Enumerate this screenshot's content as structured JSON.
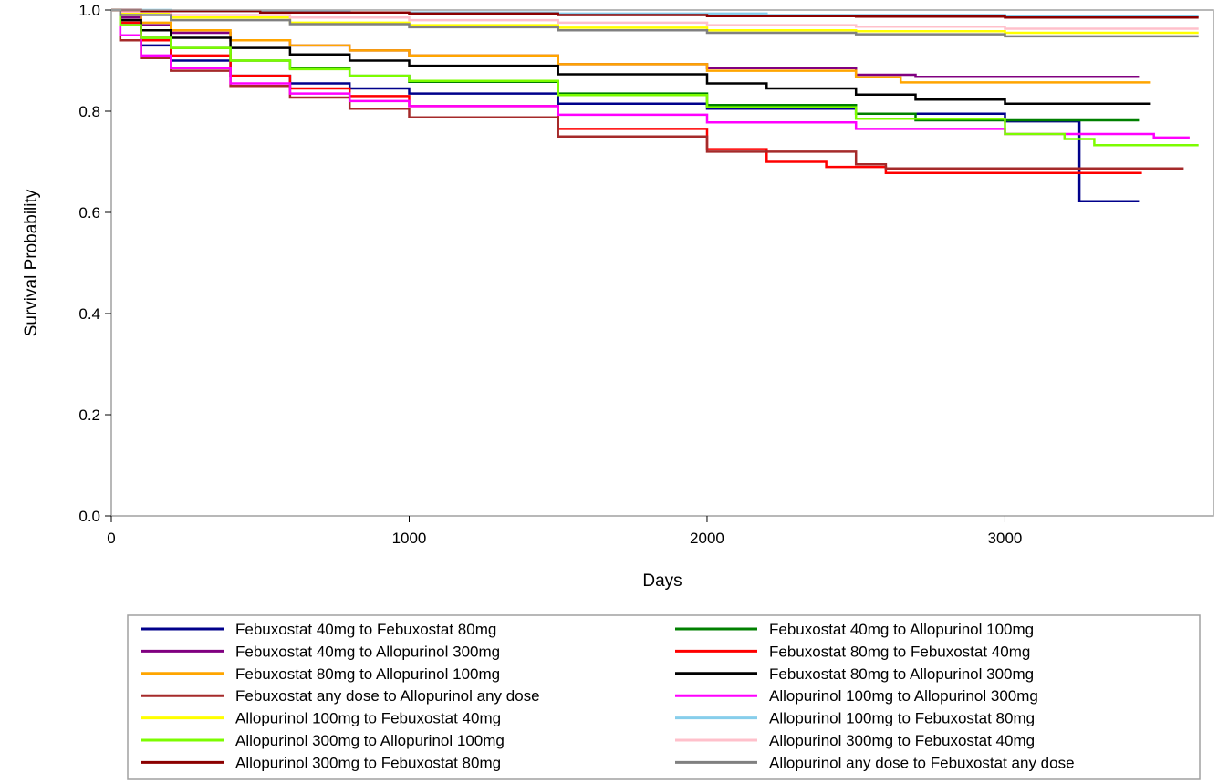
{
  "chart_data": {
    "type": "line",
    "xlabel": "Days",
    "ylabel": "Survival Probability",
    "xlim": [
      0,
      3700
    ],
    "ylim": [
      0,
      1.0
    ],
    "xticks": [
      0,
      1000,
      2000,
      3000
    ],
    "xtick_labels": [
      "0",
      "1000",
      "2000",
      "3000"
    ],
    "yticks": [
      0,
      0.2,
      0.4,
      0.6,
      0.8,
      1.0
    ],
    "ytick_labels": [
      "0.0",
      "0.2",
      "0.4",
      "0.6",
      "0.8",
      "1.0"
    ],
    "grid": false,
    "legend_position": "bottom",
    "step": true,
    "series": [
      {
        "name": "Febuxostat 40mg to Febuxostat 80mg",
        "color": "#00008b",
        "x": [
          0,
          30,
          100,
          200,
          400,
          600,
          800,
          1000,
          1500,
          2000,
          2500,
          3000,
          3249,
          3250,
          3450
        ],
        "y": [
          1.0,
          0.97,
          0.93,
          0.9,
          0.87,
          0.855,
          0.845,
          0.835,
          0.815,
          0.805,
          0.795,
          0.78,
          0.78,
          0.622,
          0.622
        ]
      },
      {
        "name": "Febuxostat 40mg to Allopurinol 100mg",
        "color": "#008000",
        "x": [
          0,
          30,
          100,
          200,
          400,
          600,
          800,
          1000,
          1500,
          2000,
          2500,
          2700,
          3450
        ],
        "y": [
          1.0,
          0.97,
          0.945,
          0.925,
          0.9,
          0.885,
          0.87,
          0.858,
          0.835,
          0.812,
          0.795,
          0.782,
          0.782
        ]
      },
      {
        "name": "Febuxostat 40mg to Allopurinol 300mg",
        "color": "#800080",
        "x": [
          0,
          30,
          100,
          200,
          400,
          600,
          800,
          1000,
          1500,
          2000,
          2500,
          2700,
          3450
        ],
        "y": [
          1.0,
          0.985,
          0.97,
          0.955,
          0.94,
          0.93,
          0.92,
          0.91,
          0.893,
          0.885,
          0.872,
          0.868,
          0.868
        ]
      },
      {
        "name": "Febuxostat 80mg to Febuxostat 40mg",
        "color": "#ff0000",
        "x": [
          0,
          30,
          100,
          200,
          400,
          600,
          800,
          1000,
          1500,
          2000,
          2200,
          2400,
          2600,
          3460
        ],
        "y": [
          1.0,
          0.975,
          0.94,
          0.91,
          0.87,
          0.845,
          0.83,
          0.81,
          0.765,
          0.725,
          0.7,
          0.69,
          0.678,
          0.678
        ]
      },
      {
        "name": "Febuxostat 80mg to Allopurinol 100mg",
        "color": "#ffa500",
        "x": [
          0,
          30,
          100,
          200,
          400,
          600,
          800,
          1000,
          1500,
          2000,
          2500,
          2650,
          3490
        ],
        "y": [
          1.0,
          0.99,
          0.975,
          0.96,
          0.94,
          0.93,
          0.92,
          0.91,
          0.893,
          0.88,
          0.867,
          0.857,
          0.857
        ]
      },
      {
        "name": "Febuxostat 80mg to Allopurinol 300mg",
        "color": "#000000",
        "x": [
          0,
          30,
          100,
          200,
          400,
          600,
          800,
          1000,
          1500,
          2000,
          2200,
          2500,
          2700,
          3000,
          3490
        ],
        "y": [
          1.0,
          0.98,
          0.96,
          0.945,
          0.925,
          0.912,
          0.9,
          0.89,
          0.873,
          0.855,
          0.845,
          0.833,
          0.823,
          0.815,
          0.815
        ]
      },
      {
        "name": "Febuxostat any dose to Allopurinol any dose",
        "color": "#a52a2a",
        "x": [
          0,
          30,
          100,
          200,
          400,
          600,
          800,
          1000,
          1500,
          2000,
          2500,
          2600,
          3600
        ],
        "y": [
          1.0,
          0.94,
          0.905,
          0.88,
          0.85,
          0.827,
          0.805,
          0.788,
          0.75,
          0.72,
          0.695,
          0.687,
          0.687
        ]
      },
      {
        "name": "Allopurinol 100mg to Allopurinol 300mg",
        "color": "#ff00ff",
        "x": [
          0,
          30,
          100,
          200,
          400,
          600,
          800,
          1000,
          1500,
          2000,
          2500,
          3000,
          3500,
          3620
        ],
        "y": [
          1.0,
          0.95,
          0.91,
          0.885,
          0.855,
          0.835,
          0.82,
          0.81,
          0.793,
          0.778,
          0.765,
          0.755,
          0.748,
          0.748
        ]
      },
      {
        "name": "Allopurinol 100mg to Febuxostat 40mg",
        "color": "#ffff00",
        "x": [
          0,
          30,
          200,
          600,
          1000,
          1500,
          2000,
          2500,
          3000,
          3650
        ],
        "y": [
          1.0,
          0.995,
          0.985,
          0.975,
          0.97,
          0.965,
          0.96,
          0.958,
          0.955,
          0.955
        ]
      },
      {
        "name": "Allopurinol 100mg to Febuxostat 80mg",
        "color": "#87ceeb",
        "x": [
          0,
          200,
          800,
          1500,
          2200,
          3000,
          3650
        ],
        "y": [
          1.0,
          0.998,
          0.995,
          0.993,
          0.99,
          0.988,
          0.988
        ]
      },
      {
        "name": "Allopurinol 300mg to Allopurinol 100mg",
        "color": "#7cfc00",
        "x": [
          0,
          30,
          100,
          200,
          400,
          600,
          800,
          1000,
          1500,
          2000,
          2500,
          3000,
          3200,
          3300,
          3650
        ],
        "y": [
          1.0,
          0.97,
          0.945,
          0.925,
          0.9,
          0.883,
          0.87,
          0.86,
          0.832,
          0.808,
          0.785,
          0.755,
          0.745,
          0.733,
          0.733
        ]
      },
      {
        "name": "Allopurinol 300mg to Febuxostat 40mg",
        "color": "#ffc0cb",
        "x": [
          0,
          30,
          200,
          600,
          1000,
          1500,
          2000,
          2500,
          3000,
          3650
        ],
        "y": [
          1.0,
          0.997,
          0.99,
          0.985,
          0.98,
          0.975,
          0.97,
          0.967,
          0.963,
          0.963
        ]
      },
      {
        "name": "Allopurinol 300mg to Febuxostat 80mg",
        "color": "#8b0000",
        "x": [
          0,
          100,
          500,
          1000,
          1500,
          2000,
          2500,
          3000,
          3650
        ],
        "y": [
          1.0,
          0.998,
          0.995,
          0.993,
          0.99,
          0.988,
          0.987,
          0.985,
          0.985
        ]
      },
      {
        "name": "Allopurinol any dose to Febuxostat any dose",
        "color": "#808080",
        "x": [
          0,
          30,
          200,
          600,
          1000,
          1500,
          2000,
          2500,
          3000,
          3650
        ],
        "y": [
          1.0,
          0.99,
          0.98,
          0.972,
          0.966,
          0.96,
          0.955,
          0.952,
          0.948,
          0.948
        ]
      }
    ]
  }
}
